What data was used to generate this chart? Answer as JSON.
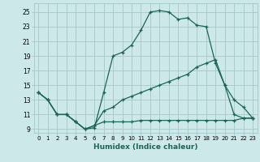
{
  "xlabel": "Humidex (Indice chaleur)",
  "bg_color": "#cce8e8",
  "grid_color": "#aacccc",
  "line_color": "#1a6655",
  "xlim": [
    -0.5,
    23.5
  ],
  "ylim": [
    8.5,
    26.2
  ],
  "xticks": [
    0,
    1,
    2,
    3,
    4,
    5,
    6,
    7,
    8,
    9,
    10,
    11,
    12,
    13,
    14,
    15,
    16,
    17,
    18,
    19,
    20,
    21,
    22,
    23
  ],
  "yticks": [
    9,
    11,
    13,
    15,
    17,
    19,
    21,
    23,
    25
  ],
  "line1_x": [
    0,
    1,
    2,
    3,
    4,
    5,
    6,
    7,
    8,
    9,
    10,
    11,
    12,
    13,
    14,
    15,
    16,
    17,
    18,
    19,
    20,
    21,
    22,
    23
  ],
  "line1_y": [
    14,
    13,
    11,
    11,
    10,
    9,
    9.2,
    14,
    19,
    19.5,
    20.5,
    22.5,
    25,
    25.2,
    25,
    24,
    24.2,
    23.2,
    23,
    18,
    15,
    11,
    10.5,
    10.5
  ],
  "line2_x": [
    0,
    1,
    2,
    3,
    4,
    5,
    6,
    7,
    8,
    9,
    10,
    11,
    12,
    13,
    14,
    15,
    16,
    17,
    18,
    19,
    20,
    21,
    22,
    23
  ],
  "line2_y": [
    14,
    13,
    11,
    11,
    10,
    9,
    9.5,
    11.5,
    12,
    13,
    13.5,
    14,
    14.5,
    15,
    15.5,
    16,
    16.5,
    17.5,
    18,
    18.5,
    15,
    13,
    12,
    10.5
  ],
  "line3_x": [
    0,
    1,
    2,
    3,
    4,
    5,
    6,
    7,
    8,
    9,
    10,
    11,
    12,
    13,
    14,
    15,
    16,
    17,
    18,
    19,
    20,
    21,
    22,
    23
  ],
  "line3_y": [
    14,
    13,
    11,
    11,
    10,
    9,
    9.5,
    10,
    10,
    10,
    10,
    10.2,
    10.2,
    10.2,
    10.2,
    10.2,
    10.2,
    10.2,
    10.2,
    10.2,
    10.2,
    10.2,
    10.5,
    10.5
  ]
}
